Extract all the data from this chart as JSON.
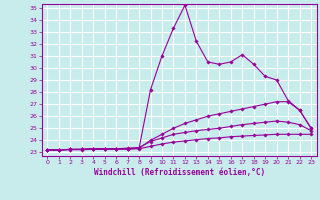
{
  "xlabel": "Windchill (Refroidissement éolien,°C)",
  "bg_color": "#c8ecec",
  "grid_color": "#ffffff",
  "line_color": "#990099",
  "xlim": [
    -0.5,
    23.5
  ],
  "ylim": [
    22.7,
    35.3
  ],
  "xticks": [
    0,
    1,
    2,
    3,
    4,
    5,
    6,
    7,
    8,
    9,
    10,
    11,
    12,
    13,
    14,
    15,
    16,
    17,
    18,
    19,
    20,
    21,
    22,
    23
  ],
  "yticks": [
    23,
    24,
    25,
    26,
    27,
    28,
    29,
    30,
    31,
    32,
    33,
    34,
    35
  ],
  "series": [
    {
      "x": [
        0,
        1,
        2,
        3,
        4,
        5,
        6,
        7,
        8,
        9,
        10,
        11,
        12,
        13,
        14,
        15,
        16,
        17,
        18,
        19,
        20,
        21,
        22,
        23
      ],
      "y": [
        23.2,
        23.2,
        23.25,
        23.25,
        23.3,
        23.3,
        23.3,
        23.3,
        23.35,
        28.2,
        31.0,
        33.3,
        35.2,
        32.2,
        30.5,
        30.3,
        30.5,
        31.1,
        30.3,
        29.3,
        29.0,
        27.3,
        26.5,
        25.0
      ]
    },
    {
      "x": [
        0,
        1,
        2,
        3,
        4,
        5,
        6,
        7,
        8,
        9,
        10,
        11,
        12,
        13,
        14,
        15,
        16,
        17,
        18,
        19,
        20,
        21,
        22,
        23
      ],
      "y": [
        23.2,
        23.2,
        23.25,
        23.25,
        23.3,
        23.3,
        23.3,
        23.3,
        23.35,
        24.0,
        24.5,
        25.0,
        25.4,
        25.7,
        26.0,
        26.2,
        26.4,
        26.6,
        26.8,
        27.0,
        27.2,
        27.2,
        26.5,
        25.0
      ]
    },
    {
      "x": [
        0,
        1,
        2,
        3,
        4,
        5,
        6,
        7,
        8,
        9,
        10,
        11,
        12,
        13,
        14,
        15,
        16,
        17,
        18,
        19,
        20,
        21,
        22,
        23
      ],
      "y": [
        23.2,
        23.2,
        23.25,
        23.25,
        23.3,
        23.3,
        23.3,
        23.35,
        23.4,
        23.9,
        24.2,
        24.5,
        24.65,
        24.8,
        24.9,
        25.0,
        25.15,
        25.3,
        25.4,
        25.5,
        25.6,
        25.5,
        25.3,
        24.8
      ]
    },
    {
      "x": [
        0,
        1,
        2,
        3,
        4,
        5,
        6,
        7,
        8,
        9,
        10,
        11,
        12,
        13,
        14,
        15,
        16,
        17,
        18,
        19,
        20,
        21,
        22,
        23
      ],
      "y": [
        23.2,
        23.2,
        23.22,
        23.22,
        23.25,
        23.25,
        23.25,
        23.27,
        23.3,
        23.5,
        23.7,
        23.85,
        23.95,
        24.05,
        24.15,
        24.2,
        24.3,
        24.35,
        24.4,
        24.45,
        24.5,
        24.5,
        24.5,
        24.5
      ]
    }
  ]
}
